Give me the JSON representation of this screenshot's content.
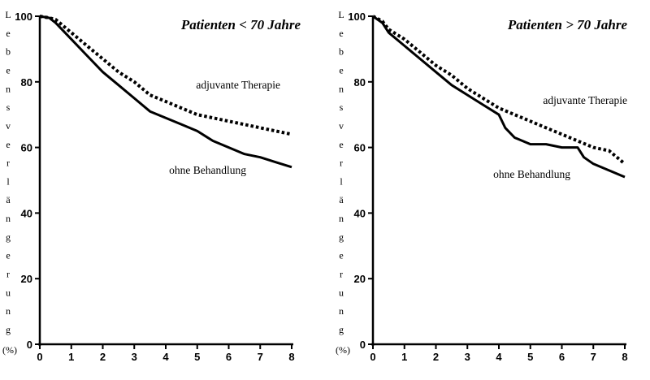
{
  "chart_data": [
    {
      "type": "line",
      "title": "Patienten < 70 Jahre",
      "ylabel_letters": [
        "L",
        "e",
        "b",
        "e",
        "n",
        "s",
        "v",
        "e",
        "r",
        "l",
        "ä",
        "n",
        "g",
        "e",
        "r",
        "u",
        "n",
        "g"
      ],
      "ylabel_unit": "(%)",
      "xlabel": "",
      "xlim": [
        0,
        8
      ],
      "ylim": [
        0,
        100
      ],
      "x_ticks": [
        "0",
        "1",
        "2",
        "3",
        "4",
        "5",
        "6",
        "7",
        "8"
      ],
      "y_ticks": [
        "0",
        "20",
        "40",
        "60",
        "80",
        "100"
      ],
      "grid": false,
      "series": [
        {
          "name": "adjuvante Therapie",
          "style": "dotted",
          "x": [
            0,
            0.3,
            0.5,
            1.0,
            1.5,
            2.0,
            2.5,
            3.0,
            3.5,
            4.0,
            4.5,
            5.0,
            5.5,
            6.0,
            6.5,
            7.0,
            7.5,
            8.0
          ],
          "y": [
            100,
            99.5,
            99,
            95,
            91,
            87,
            83,
            80,
            76,
            74,
            72,
            70,
            69,
            68,
            67,
            66,
            65,
            64
          ]
        },
        {
          "name": "ohne Behandlung",
          "style": "solid",
          "x": [
            0,
            0.3,
            0.5,
            1.0,
            1.5,
            2.0,
            2.5,
            3.0,
            3.5,
            4.0,
            4.5,
            5.0,
            5.5,
            6.0,
            6.5,
            7.0,
            7.5,
            8.0
          ],
          "y": [
            100,
            99.5,
            98,
            93,
            88,
            83,
            79,
            75,
            71,
            69,
            67,
            65,
            62,
            60,
            58,
            57,
            55.5,
            54
          ]
        }
      ]
    },
    {
      "type": "line",
      "title": "Patienten > 70 Jahre",
      "ylabel_letters": [
        "L",
        "e",
        "b",
        "e",
        "n",
        "s",
        "v",
        "e",
        "r",
        "l",
        "ä",
        "n",
        "g",
        "e",
        "r",
        "u",
        "n",
        "g"
      ],
      "ylabel_unit": "(%)",
      "xlabel": "",
      "xlim": [
        0,
        8
      ],
      "ylim": [
        0,
        100
      ],
      "x_ticks": [
        "0",
        "1",
        "2",
        "3",
        "4",
        "5",
        "6",
        "7",
        "8"
      ],
      "y_ticks": [
        "0",
        "20",
        "40",
        "60",
        "80",
        "100"
      ],
      "grid": false,
      "series": [
        {
          "name": "adjuvante Therapie",
          "style": "dotted",
          "x": [
            0,
            0.3,
            0.5,
            1.0,
            1.5,
            2.0,
            2.5,
            3.0,
            3.5,
            4.0,
            4.5,
            5.0,
            5.5,
            6.0,
            6.5,
            7.0,
            7.5,
            8.0
          ],
          "y": [
            100,
            98.5,
            96,
            93,
            89,
            85,
            82,
            78,
            75,
            72,
            70,
            68,
            66,
            64,
            62,
            60,
            59,
            55
          ]
        },
        {
          "name": "ohne Behandlung",
          "style": "solid",
          "x": [
            0,
            0.3,
            0.5,
            1.0,
            1.5,
            2.0,
            2.5,
            3.0,
            3.5,
            4.0,
            4.2,
            4.5,
            5.0,
            5.5,
            6.0,
            6.5,
            6.7,
            7.0,
            7.5,
            8.0
          ],
          "y": [
            100,
            98,
            95,
            91,
            87,
            83,
            79,
            76,
            73,
            70,
            66,
            63,
            61,
            61,
            60,
            60,
            57,
            55,
            53,
            51
          ]
        }
      ]
    }
  ]
}
